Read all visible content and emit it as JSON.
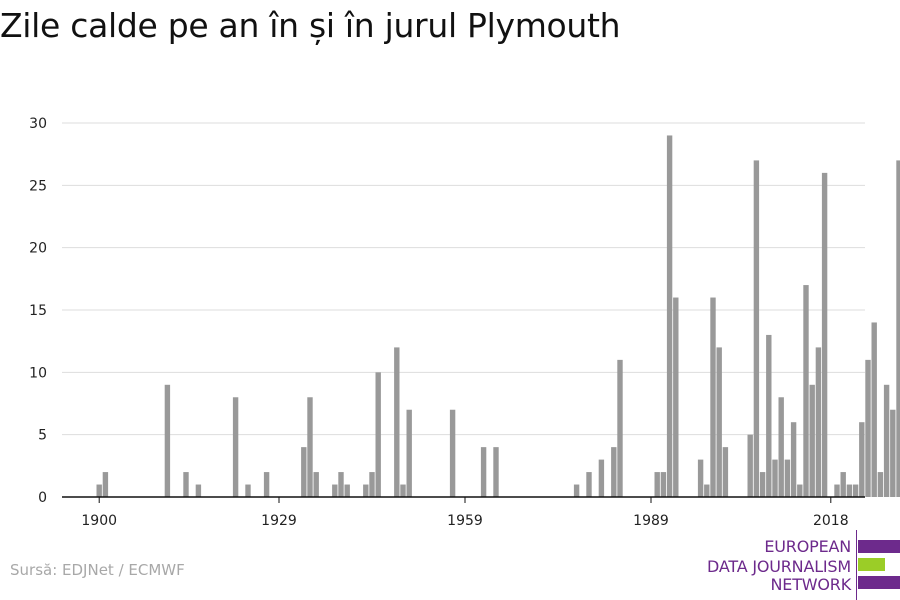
{
  "title": "Zile calde pe an în și în jurul Plymouth",
  "source": "Sursă: EDJNet / ECMWF",
  "logo": {
    "line1": "EUROPEAN",
    "line2": "DATA JOURNALISM",
    "line3": "NETWORK",
    "purple": "#6d2a8c",
    "green": "#9bcd27"
  },
  "colors": {
    "bar": "#999999",
    "grid": "#dddddd",
    "axis": "#111111"
  },
  "chart_data": {
    "type": "bar",
    "title": "Zile calde pe an în și în jurul Plymouth",
    "xlabel": "",
    "ylabel": "",
    "ylim": [
      0,
      30
    ],
    "yticks": [
      0,
      5,
      10,
      15,
      20,
      25,
      30
    ],
    "xticks": [
      1900,
      1929,
      1959,
      1989,
      2018
    ],
    "grid": true,
    "x_start": 1900,
    "values": [
      1,
      2,
      0,
      0,
      0,
      0,
      0,
      0,
      0,
      0,
      0,
      9,
      0,
      0,
      2,
      0,
      1,
      0,
      0,
      0,
      0,
      0,
      8,
      0,
      1,
      0,
      0,
      2,
      0,
      0,
      0,
      0,
      0,
      4,
      8,
      2,
      0,
      0,
      1,
      2,
      1,
      0,
      0,
      1,
      2,
      10,
      0,
      0,
      12,
      1,
      7,
      0,
      0,
      0,
      0,
      0,
      0,
      7,
      0,
      0,
      0,
      0,
      4,
      0,
      4,
      0,
      0,
      0,
      0,
      0,
      0,
      0,
      0,
      0,
      0,
      0,
      0,
      1,
      0,
      2,
      0,
      3,
      0,
      4,
      11,
      0,
      0,
      0,
      0,
      0,
      2,
      2,
      29,
      16,
      0,
      0,
      0,
      3,
      1,
      16,
      12,
      4,
      0,
      0,
      0,
      5,
      27,
      2,
      13,
      3,
      8,
      3,
      6,
      1,
      17,
      9,
      12,
      26,
      0,
      1,
      2,
      1,
      1,
      6,
      11,
      14,
      2,
      9,
      7,
      27
    ]
  }
}
